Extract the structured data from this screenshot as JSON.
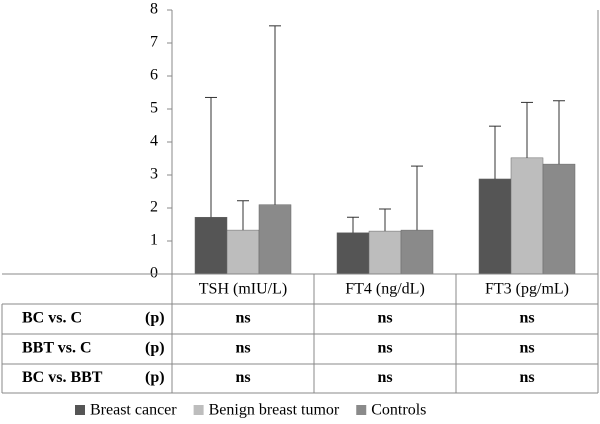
{
  "chart_data": {
    "type": "bar",
    "categories": [
      "TSH (mIU/L)",
      "FT4 (ng/dL)",
      "FT3 (pg/mL)"
    ],
    "series": [
      {
        "name": "Breast cancer",
        "color": "#555555",
        "values": [
          1.72,
          1.25,
          2.88
        ],
        "errors": [
          3.63,
          0.47,
          1.6
        ]
      },
      {
        "name": "Benign breast tumor",
        "color": "#bdbdbd",
        "values": [
          1.33,
          1.3,
          3.52
        ],
        "errors": [
          0.89,
          0.67,
          1.68
        ]
      },
      {
        "name": "Controls",
        "color": "#8a8a8a",
        "values": [
          2.1,
          1.33,
          3.33
        ],
        "errors": [
          5.42,
          1.94,
          1.92
        ]
      }
    ],
    "ylim": [
      0,
      8
    ],
    "yticks": [
      0,
      1,
      2,
      3,
      4,
      5,
      6,
      7,
      8
    ],
    "grid": false
  },
  "table": {
    "rows": [
      {
        "label": "BC vs. C",
        "p": "(p)",
        "cells": [
          "ns",
          "ns",
          "ns"
        ]
      },
      {
        "label": "BBT vs. C",
        "p": "(p)",
        "cells": [
          "ns",
          "ns",
          "ns"
        ]
      },
      {
        "label": "BC vs. BBT",
        "p": "(p)",
        "cells": [
          "ns",
          "ns",
          "ns"
        ]
      }
    ]
  }
}
